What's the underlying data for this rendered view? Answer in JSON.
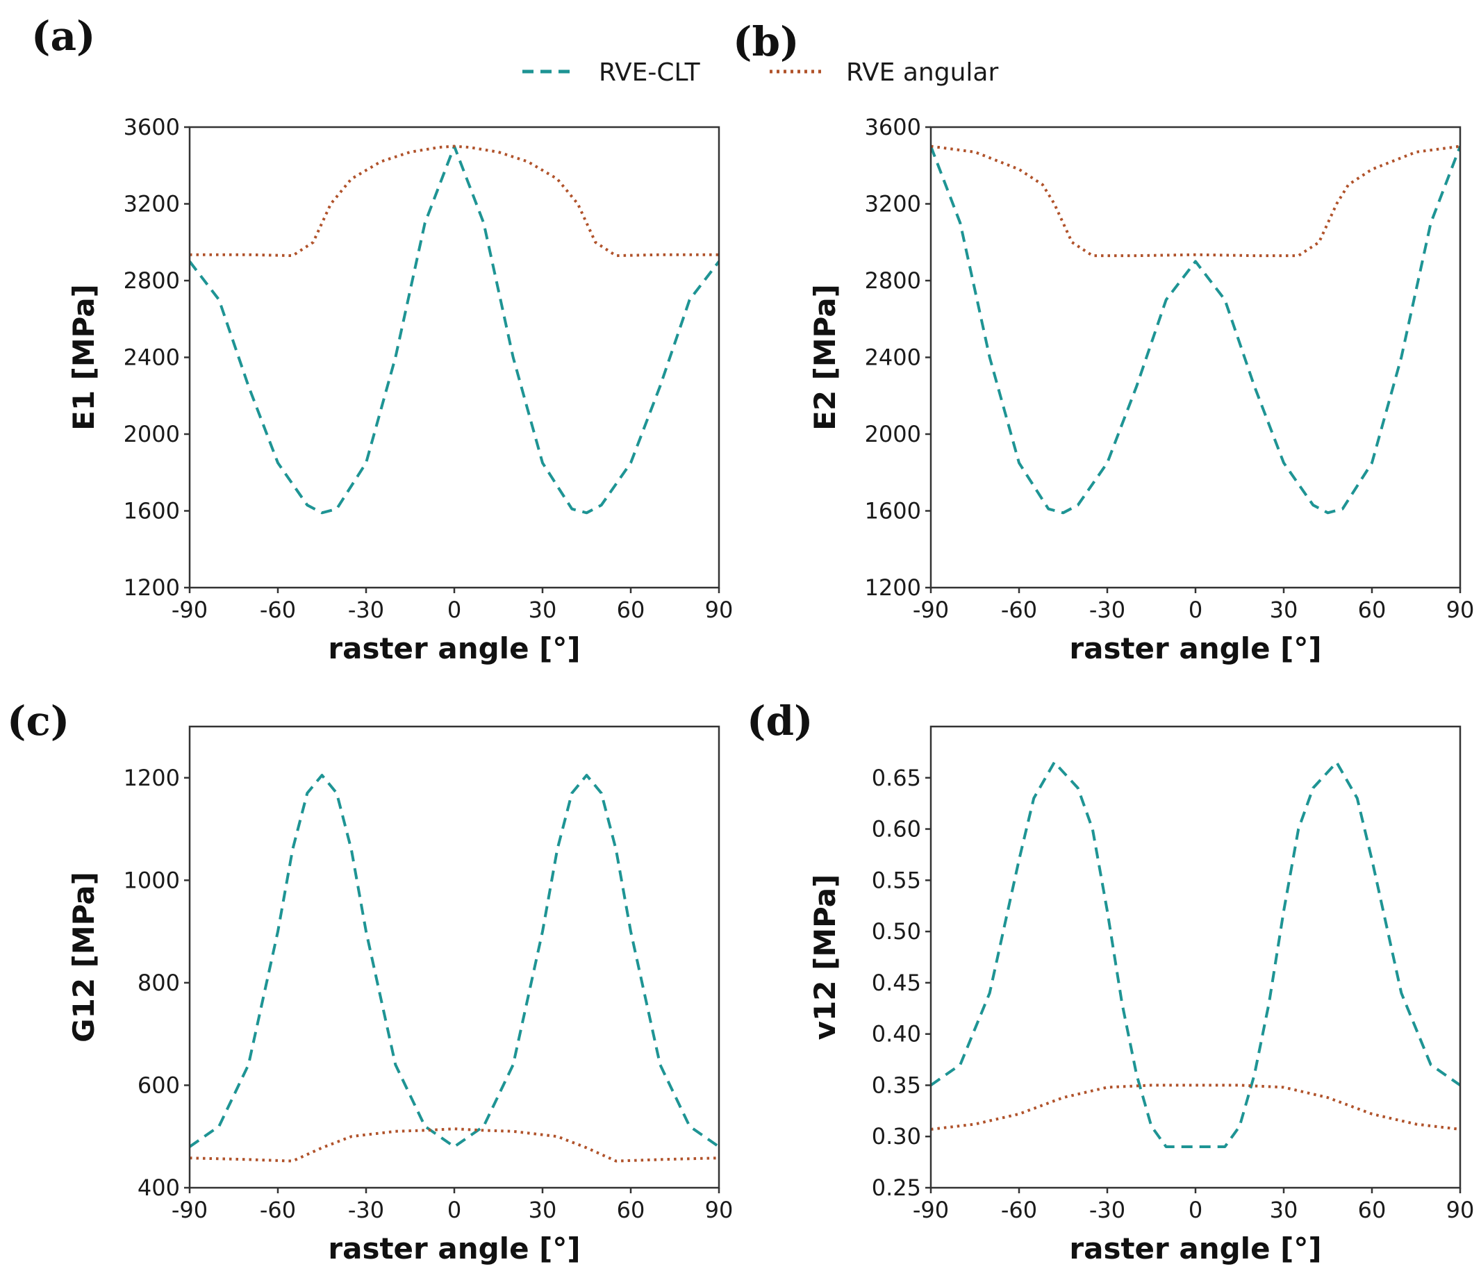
{
  "legend": {
    "items": [
      {
        "label": "RVE-CLT",
        "color": "#1e9494",
        "style": "dashed"
      },
      {
        "label": "RVE angular",
        "color": "#b0522a",
        "style": "dotted"
      }
    ]
  },
  "chart_data": [
    {
      "panel": "(a)",
      "type": "line",
      "xlabel": "raster angle [°]",
      "ylabel": "E1 [MPa]",
      "xlim": [
        -90,
        90
      ],
      "ylim": [
        1200,
        3600
      ],
      "xticks": [
        -90,
        -60,
        -30,
        0,
        30,
        60,
        90
      ],
      "yticks": [
        1200,
        1600,
        2000,
        2400,
        2800,
        3200,
        3600
      ],
      "tick_decimals": 0,
      "series": [
        {
          "name": "RVE-CLT",
          "x": [
            -90,
            -80,
            -70,
            -60,
            -50,
            -45,
            -40,
            -30,
            -20,
            -10,
            0,
            10,
            20,
            30,
            40,
            45,
            50,
            60,
            70,
            80,
            90
          ],
          "y": [
            2900,
            2700,
            2250,
            1850,
            1630,
            1590,
            1610,
            1850,
            2400,
            3100,
            3500,
            3100,
            2400,
            1850,
            1610,
            1590,
            1630,
            1850,
            2250,
            2700,
            2900
          ]
        },
        {
          "name": "RVE angular",
          "x": [
            -90,
            -70,
            -55,
            -48,
            -42,
            -35,
            -25,
            -15,
            -5,
            0,
            5,
            15,
            25,
            35,
            42,
            48,
            55,
            70,
            90
          ],
          "y": [
            2935,
            2935,
            2930,
            3000,
            3200,
            3330,
            3420,
            3470,
            3495,
            3500,
            3495,
            3470,
            3420,
            3330,
            3200,
            3000,
            2930,
            2935,
            2935
          ]
        }
      ]
    },
    {
      "panel": "(b)",
      "type": "line",
      "xlabel": "raster angle [°]",
      "ylabel": "E2 [MPa]",
      "xlim": [
        -90,
        90
      ],
      "ylim": [
        1200,
        3600
      ],
      "xticks": [
        -90,
        -60,
        -30,
        0,
        30,
        60,
        90
      ],
      "yticks": [
        1200,
        1600,
        2000,
        2400,
        2800,
        3200,
        3600
      ],
      "tick_decimals": 0,
      "series": [
        {
          "name": "RVE-CLT",
          "x": [
            -90,
            -80,
            -70,
            -60,
            -50,
            -45,
            -40,
            -30,
            -20,
            -10,
            0,
            10,
            20,
            30,
            40,
            45,
            50,
            60,
            70,
            80,
            90
          ],
          "y": [
            3500,
            3100,
            2400,
            1850,
            1610,
            1590,
            1630,
            1850,
            2250,
            2700,
            2900,
            2700,
            2250,
            1850,
            1630,
            1590,
            1610,
            1850,
            2400,
            3100,
            3500
          ]
        },
        {
          "name": "RVE angular",
          "x": [
            -90,
            -75,
            -60,
            -52,
            -48,
            -42,
            -35,
            -20,
            0,
            20,
            35,
            42,
            48,
            52,
            60,
            75,
            90
          ],
          "y": [
            3500,
            3470,
            3380,
            3300,
            3200,
            3000,
            2930,
            2930,
            2935,
            2930,
            2930,
            3000,
            3200,
            3300,
            3380,
            3470,
            3500
          ]
        }
      ]
    },
    {
      "panel": "(c)",
      "type": "line",
      "xlabel": "raster angle [°]",
      "ylabel": "G12 [MPa]",
      "xlim": [
        -90,
        90
      ],
      "ylim": [
        400,
        1300
      ],
      "xticks": [
        -90,
        -60,
        -30,
        0,
        30,
        60,
        90
      ],
      "yticks": [
        400,
        600,
        800,
        1000,
        1200
      ],
      "tick_decimals": 0,
      "series": [
        {
          "name": "RVE-CLT",
          "x": [
            -90,
            -80,
            -70,
            -60,
            -55,
            -50,
            -45,
            -40,
            -35,
            -30,
            -20,
            -10,
            0,
            10,
            20,
            30,
            35,
            40,
            45,
            50,
            55,
            60,
            70,
            80,
            90
          ],
          "y": [
            480,
            520,
            640,
            900,
            1060,
            1170,
            1205,
            1170,
            1060,
            900,
            640,
            520,
            480,
            520,
            640,
            900,
            1060,
            1170,
            1205,
            1170,
            1060,
            900,
            640,
            520,
            480
          ]
        },
        {
          "name": "RVE angular",
          "x": [
            -90,
            -70,
            -55,
            -45,
            -35,
            -20,
            -10,
            0,
            10,
            20,
            35,
            45,
            55,
            70,
            90
          ],
          "y": [
            458,
            455,
            452,
            478,
            500,
            510,
            512,
            515,
            512,
            510,
            500,
            478,
            452,
            455,
            458
          ]
        }
      ]
    },
    {
      "panel": "(d)",
      "type": "line",
      "xlabel": "raster angle [°]",
      "ylabel": "v12 [MPa]",
      "xlim": [
        -90,
        90
      ],
      "ylim": [
        0.25,
        0.7
      ],
      "xticks": [
        -90,
        -60,
        -30,
        0,
        30,
        60,
        90
      ],
      "yticks": [
        0.25,
        0.3,
        0.35,
        0.4,
        0.45,
        0.5,
        0.55,
        0.6,
        0.65
      ],
      "tick_decimals": 2,
      "series": [
        {
          "name": "RVE-CLT",
          "x": [
            -90,
            -80,
            -70,
            -60,
            -55,
            -48,
            -40,
            -35,
            -30,
            -25,
            -20,
            -15,
            -10,
            -5,
            0,
            5,
            10,
            15,
            20,
            25,
            30,
            35,
            40,
            48,
            55,
            60,
            70,
            80,
            90
          ],
          "y": [
            0.35,
            0.37,
            0.44,
            0.57,
            0.63,
            0.665,
            0.64,
            0.6,
            0.52,
            0.43,
            0.36,
            0.31,
            0.29,
            0.29,
            0.29,
            0.29,
            0.29,
            0.31,
            0.36,
            0.43,
            0.52,
            0.6,
            0.64,
            0.665,
            0.63,
            0.57,
            0.44,
            0.37,
            0.35
          ]
        },
        {
          "name": "RVE angular",
          "x": [
            -90,
            -75,
            -60,
            -45,
            -30,
            -15,
            0,
            15,
            30,
            45,
            60,
            75,
            90
          ],
          "y": [
            0.307,
            0.312,
            0.322,
            0.338,
            0.348,
            0.35,
            0.35,
            0.35,
            0.348,
            0.338,
            0.322,
            0.312,
            0.307
          ]
        }
      ]
    }
  ]
}
